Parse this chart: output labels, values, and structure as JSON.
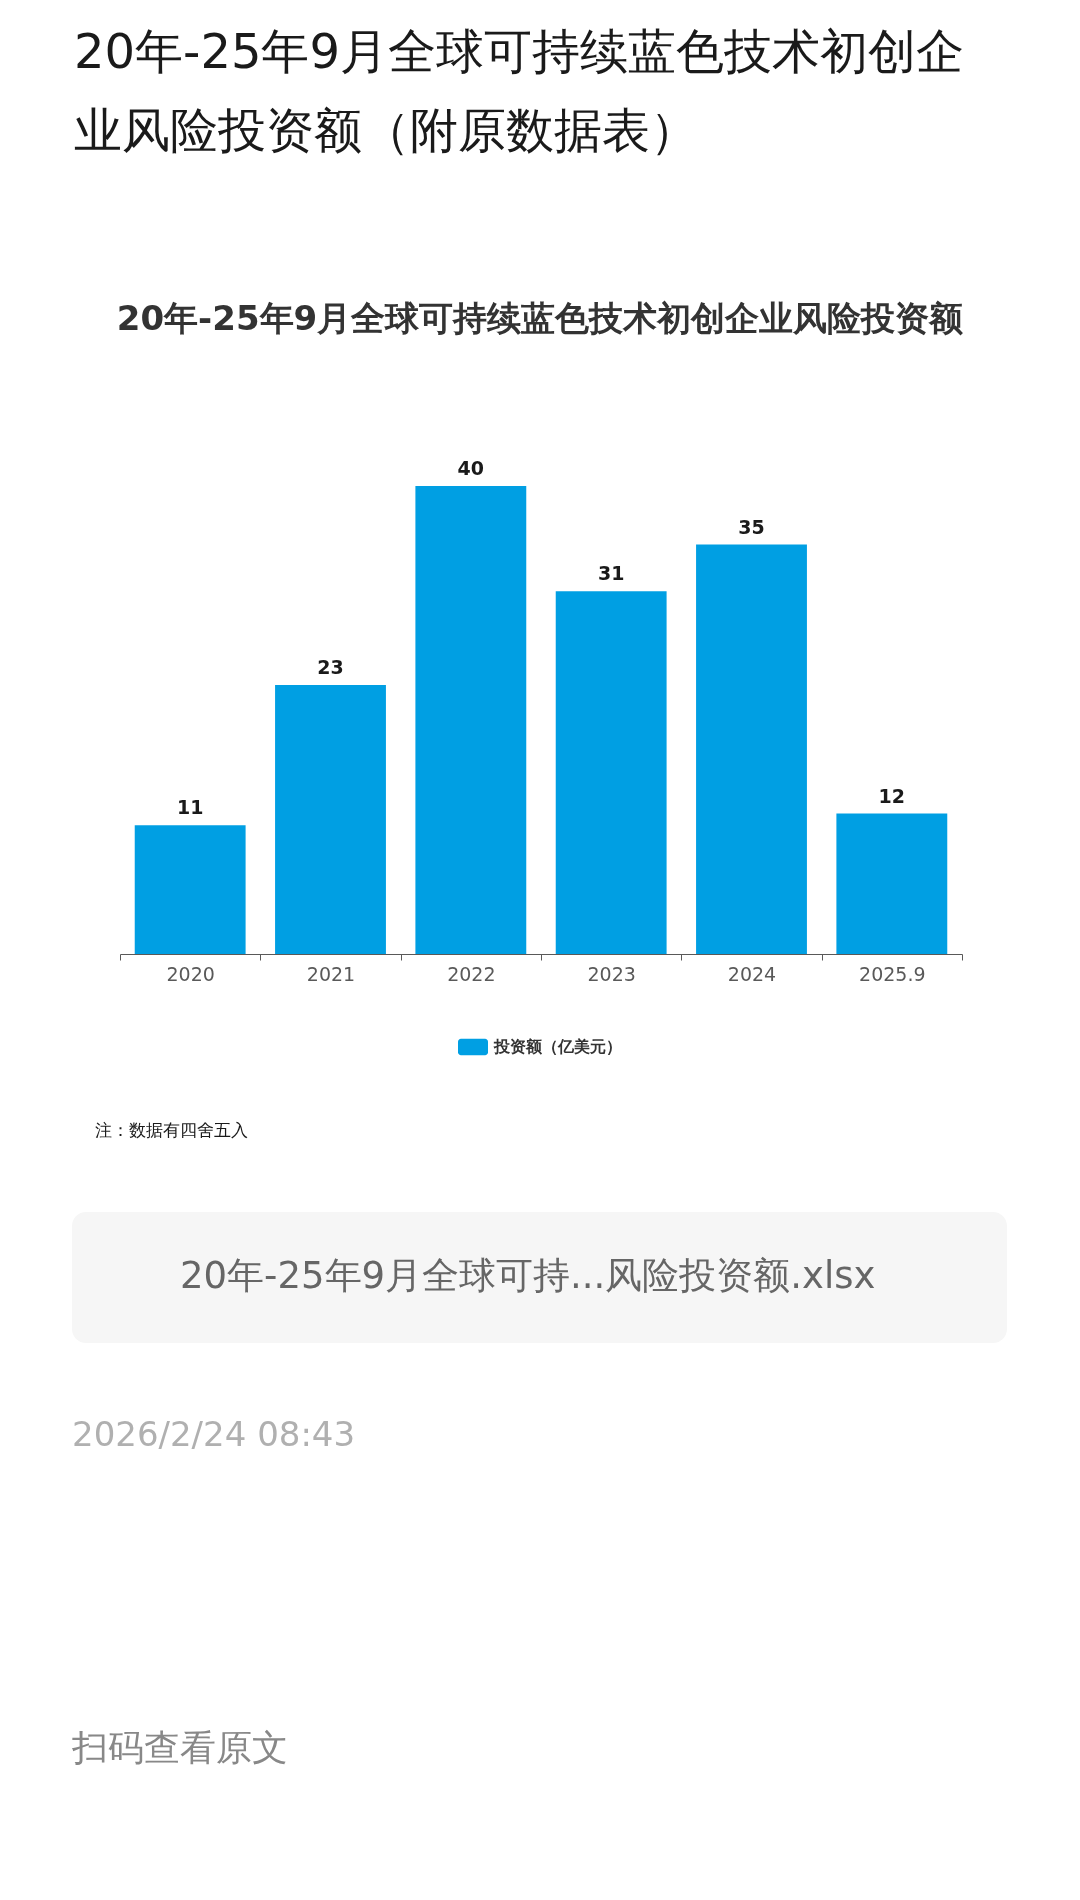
{
  "chart_data": {
    "type": "bar",
    "title": "20年-25年9月全球可持续蓝色技术初创企业风险投资额（附原数据表）",
    "subtitle": "20年-25年9月全球可持续蓝色技术初创企业风险投资额",
    "categories": [
      "2020",
      "2021",
      "2022",
      "2023",
      "2024",
      "2025.9"
    ],
    "series": [
      {
        "name": "投资额（亿美元）",
        "color": "#009fe3",
        "values": [
          11,
          23,
          40,
          31,
          35,
          12
        ]
      }
    ],
    "data_labels": true,
    "legend": "bottom",
    "annotations": [
      "注：数据有四舍五入",
      "20年-25年9月全球可持...风险投资额.xlsx",
      "2026/2/24 08:43",
      "扫码查看原文"
    ]
  }
}
